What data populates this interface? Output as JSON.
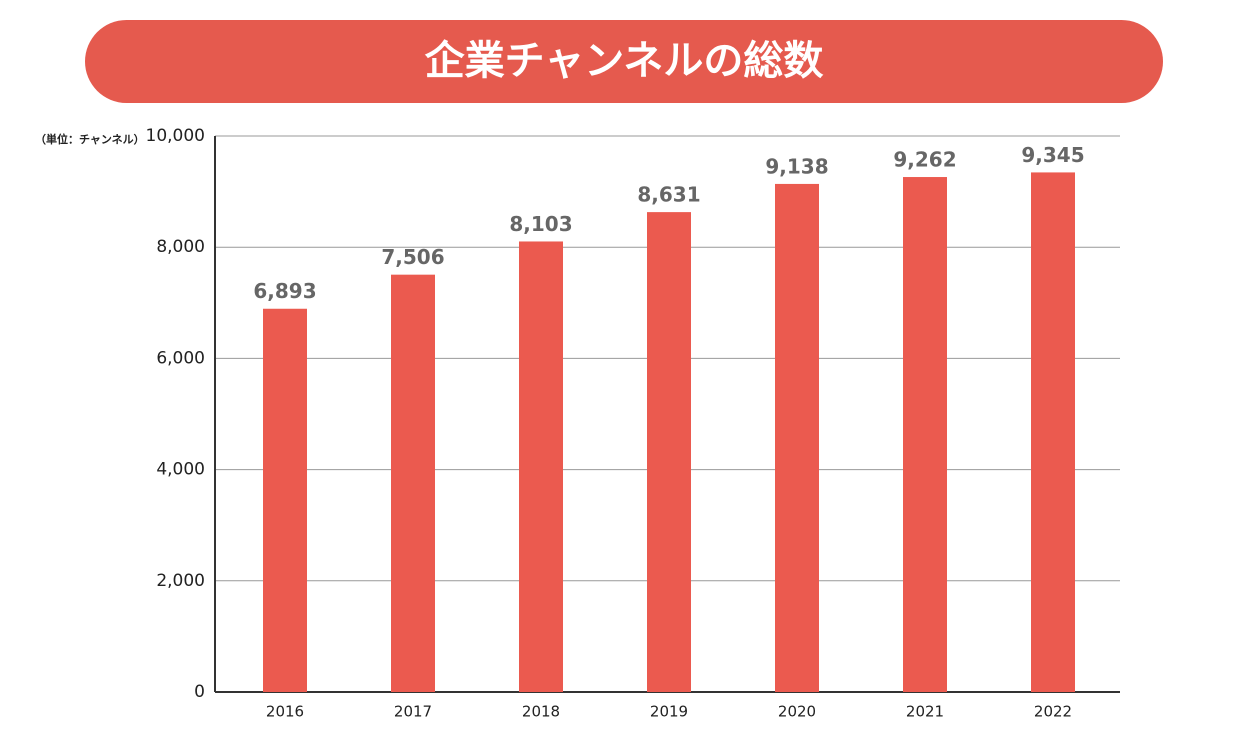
{
  "chart_data": {
    "type": "bar",
    "title": "企業チャンネルの総数",
    "y_label": "（単位：チャンネル）",
    "categories": [
      "2016",
      "2017",
      "2018",
      "2019",
      "2020",
      "2021",
      "2022"
    ],
    "values": [
      6893,
      7506,
      8103,
      8631,
      9138,
      9262,
      9345
    ],
    "value_labels": [
      "6,893",
      "7,506",
      "8,103",
      "8,631",
      "9,138",
      "9,262",
      "9,345"
    ],
    "color": "#eb5a4f",
    "ylim": [
      0,
      10000
    ],
    "yticks": [
      0,
      {
        "value": 2000,
        "label": "2,000"
      },
      {
        "value": 4000,
        "label": "4,000"
      },
      {
        "value": 6000,
        "label": "6,000"
      },
      {
        "value": 8000,
        "label": "8,000"
      },
      {
        "value": 10000,
        "label": "10,000"
      }
    ],
    "grid": true
  }
}
